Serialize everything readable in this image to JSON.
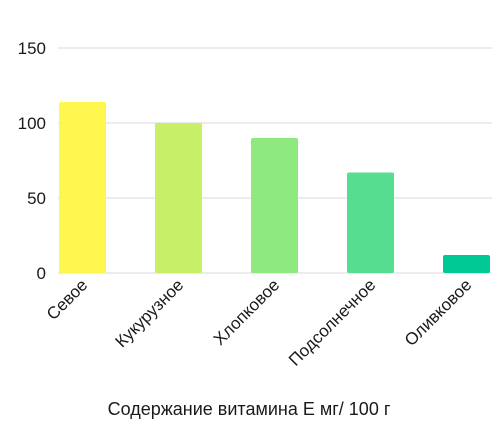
{
  "chart_data": {
    "type": "bar",
    "categories": [
      "Севое",
      "Кукурузное",
      "Хлопковое",
      "Подсолнечное",
      "Оливковое"
    ],
    "values": [
      114,
      100,
      90,
      67,
      12
    ],
    "colors": [
      "#fef750",
      "#c7f068",
      "#8ee97e",
      "#57dd8f",
      "#00c996"
    ],
    "xlabel": "Содержание витамина Е  мг/ 100 г",
    "ylabel": "",
    "yticks": [
      0,
      50,
      100,
      150
    ],
    "ylim": [
      0,
      150
    ],
    "grid": true
  }
}
